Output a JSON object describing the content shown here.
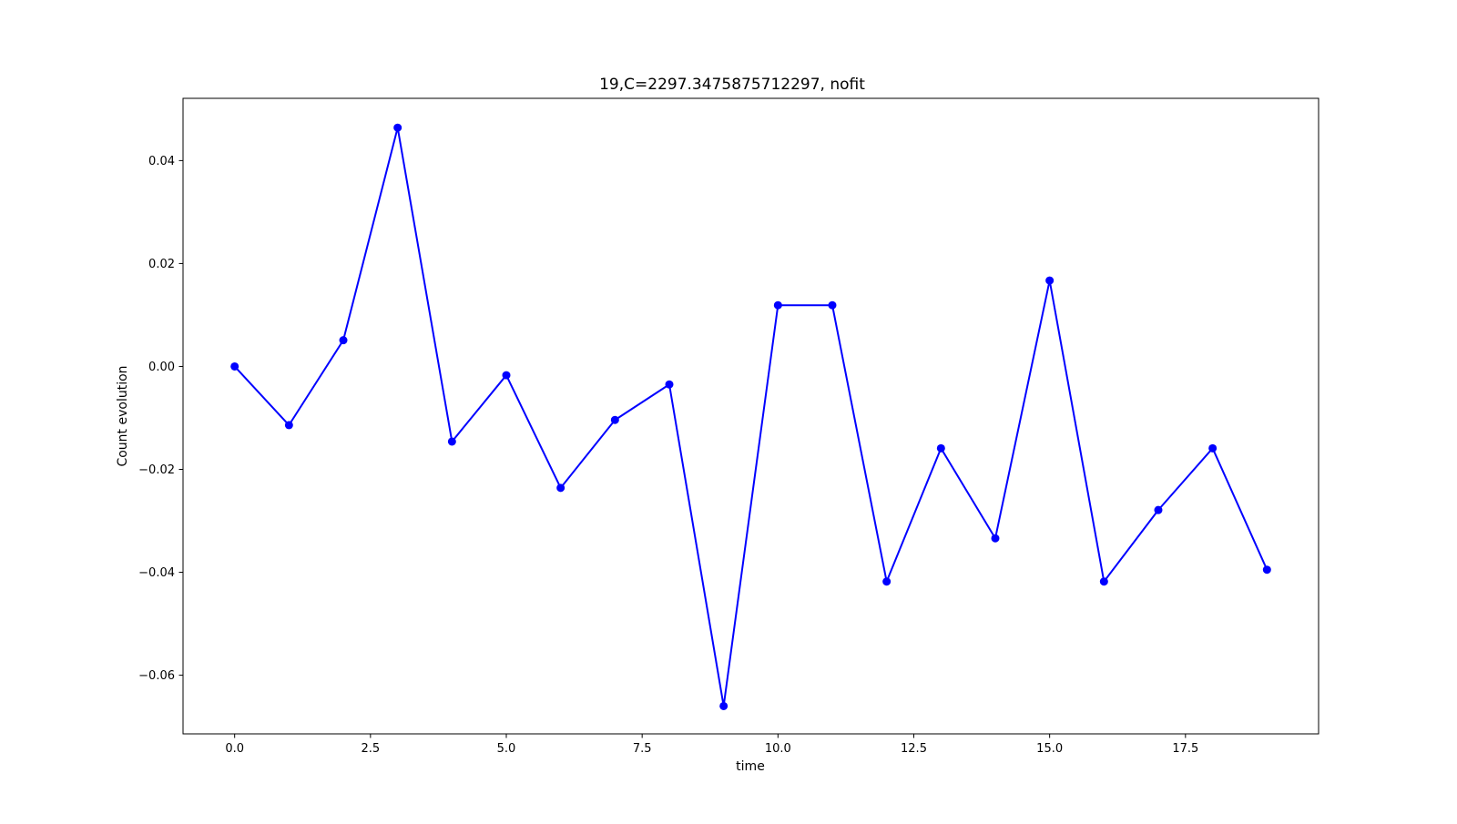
{
  "chart_data": {
    "type": "line",
    "title": "19,C=2297.3475875712297, nofit",
    "xlabel": "time",
    "ylabel": "Count evolution",
    "xlim": [
      -0.95,
      19.95
    ],
    "ylim": [
      -0.0714,
      0.0521
    ],
    "xticks": [
      0.0,
      2.5,
      5.0,
      7.5,
      10.0,
      12.5,
      15.0,
      17.5
    ],
    "xtick_labels": [
      "0.0",
      "2.5",
      "5.0",
      "7.5",
      "10.0",
      "12.5",
      "15.0",
      "17.5"
    ],
    "yticks": [
      0.04,
      0.02,
      0.0,
      -0.02,
      -0.04,
      -0.06
    ],
    "ytick_labels": [
      "0.04",
      "0.02",
      "0.00",
      "−0.02",
      "−0.04",
      "−0.06"
    ],
    "grid": false,
    "series": [
      {
        "color": "#0000ff",
        "marker": "circle",
        "x": [
          0,
          1,
          2,
          3,
          4,
          5,
          6,
          7,
          8,
          9,
          10,
          11,
          12,
          13,
          14,
          15,
          16,
          17,
          18,
          19
        ],
        "y": [
          0.0,
          -0.0114,
          0.0051,
          0.0464,
          -0.0146,
          -0.0017,
          -0.0236,
          -0.0104,
          -0.0035,
          -0.066,
          0.0119,
          0.0119,
          -0.0418,
          -0.0159,
          -0.0334,
          0.0167,
          -0.0418,
          -0.0279,
          -0.0159,
          -0.0395
        ]
      }
    ]
  }
}
